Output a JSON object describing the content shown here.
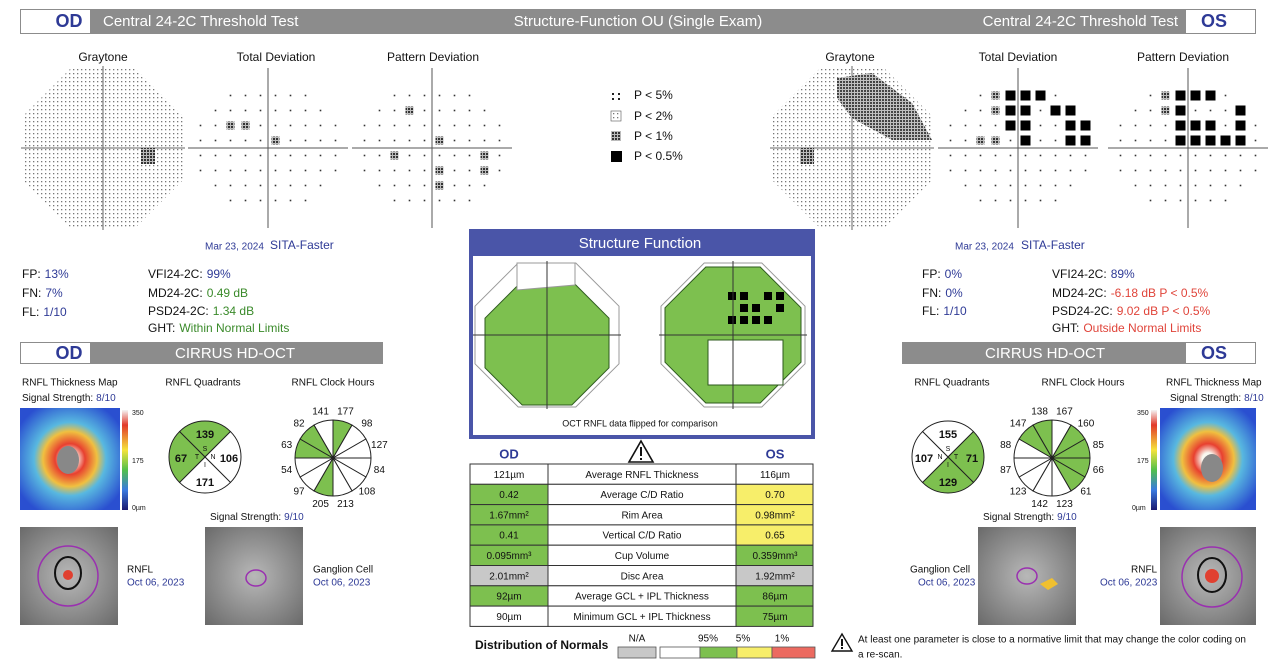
{
  "header": {
    "od": "OD",
    "od_test": "Central 24-2C Threshold Test",
    "title": "Structure-Function OU (Single Exam)",
    "os_test": "Central 24-2C Threshold Test",
    "os": "OS"
  },
  "visual_field": {
    "plot_titles": [
      "Graytone",
      "Total Deviation",
      "Pattern Deviation"
    ],
    "legend": [
      "P < 5%",
      "P < 2%",
      "P < 1%",
      "P < 0.5%"
    ],
    "od": {
      "date": "Mar 23, 2024",
      "strategy": "SITA-Faster",
      "fp_label": "FP:",
      "fp": "13%",
      "fn_label": "FN:",
      "fn": "7%",
      "fl_label": "FL:",
      "fl": "1/10",
      "vfi_label": "VFI24-2C:",
      "vfi": "99%",
      "md_label": "MD24-2C:",
      "md": "0.49 dB",
      "psd_label": "PSD24-2C:",
      "psd": "1.34 dB",
      "ght_label": "GHT:",
      "ght": "Within Normal Limits"
    },
    "os": {
      "date": "Mar 23, 2024",
      "strategy": "SITA-Faster",
      "fp_label": "FP:",
      "fp": "0%",
      "fn_label": "FN:",
      "fn": "0%",
      "fl_label": "FL:",
      "fl": "1/10",
      "vfi_label": "VFI24-2C:",
      "vfi": "89%",
      "md_label": "MD24-2C:",
      "md": "-6.18 dB P < 0.5%",
      "psd_label": "PSD24-2C:",
      "psd": "9.02 dB P < 0.5%",
      "ght_label": "GHT:",
      "ght": "Outside Normal Limits"
    }
  },
  "oct": {
    "title": "CIRRUS HD-OCT",
    "od_label": "OD",
    "os_label": "OS",
    "map_title": "RNFL Thickness Map",
    "quadrants_title": "RNFL Quadrants",
    "clock_title": "RNFL Clock Hours",
    "signal_label": "Signal Strength:",
    "scale": [
      350,
      175,
      "0µm"
    ],
    "od": {
      "map_signal": "8/10",
      "quadrants": [
        139,
        106,
        171,
        67
      ],
      "quadrant_letters": [
        "S",
        "N",
        "I",
        "T"
      ],
      "quadrant_colors": [
        "#7dc04f",
        "#ffffff",
        "#ffffff",
        "#7dc04f"
      ],
      "clock_hours": [
        141,
        177,
        98,
        127,
        84,
        108,
        213,
        205,
        97,
        54,
        63,
        82
      ],
      "clock_colors": [
        "#ffffff",
        "#7dc04f",
        "#ffffff",
        "#ffffff",
        "#ffffff",
        "#ffffff",
        "#ffffff",
        "#7dc04f",
        "#ffffff",
        "#ffffff",
        "#7dc04f",
        "#7dc04f"
      ],
      "gc_signal": "9/10",
      "rnfl_label": "RNFL",
      "rnfl_date": "Oct 06, 2023",
      "gc_label": "Ganglion Cell",
      "gc_date": "Oct 06, 2023"
    },
    "os": {
      "map_signal": "8/10",
      "quadrants": [
        155,
        71,
        129,
        107
      ],
      "quadrant_letters": [
        "S",
        "T",
        "I",
        "N"
      ],
      "quadrant_colors": [
        "#ffffff",
        "#7dc04f",
        "#7dc04f",
        "#ffffff"
      ],
      "clock_hours": [
        138,
        167,
        160,
        85,
        66,
        61,
        123,
        142,
        123,
        87,
        88,
        147
      ],
      "clock_colors": [
        "#7dc04f",
        "#ffffff",
        "#7dc04f",
        "#7dc04f",
        "#7dc04f",
        "#7dc04f",
        "#ffffff",
        "#ffffff",
        "#ffffff",
        "#ffffff",
        "#ffffff",
        "#7dc04f"
      ],
      "gc_signal": "9/10",
      "rnfl_label": "RNFL",
      "rnfl_date": "Oct 06, 2023",
      "gc_label": "Ganglion Cell",
      "gc_date": "Oct 06, 2023"
    }
  },
  "structure_function": {
    "title": "Structure Function",
    "caption": "OCT RNFL data flipped for comparison"
  },
  "table": {
    "headers": [
      "OD",
      "OS"
    ],
    "rows": [
      {
        "od": "121µm",
        "od_color": "#ffffff",
        "parameter": "Average RNFL Thickness",
        "os": "116µm",
        "os_color": "#ffffff"
      },
      {
        "od": "0.42",
        "od_color": "#7dc04f",
        "parameter": "Average C/D Ratio",
        "os": "0.70",
        "os_color": "#f7ee6a"
      },
      {
        "od": "1.67mm²",
        "od_color": "#7dc04f",
        "parameter": "Rim Area",
        "os": "0.98mm²",
        "os_color": "#f7ee6a"
      },
      {
        "od": "0.41",
        "od_color": "#7dc04f",
        "parameter": "Vertical C/D Ratio",
        "os": "0.65",
        "os_color": "#f7ee6a"
      },
      {
        "od": "0.095mm³",
        "od_color": "#7dc04f",
        "parameter": "Cup Volume",
        "os": "0.359mm³",
        "os_color": "#7dc04f"
      },
      {
        "od": "2.01mm²",
        "od_color": "#c8c8c8",
        "parameter": "Disc Area",
        "os": "1.92mm²",
        "os_color": "#c8c8c8"
      },
      {
        "od": "92µm",
        "od_color": "#7dc04f",
        "parameter": "Average GCL + IPL Thickness",
        "os": "86µm",
        "os_color": "#7dc04f"
      },
      {
        "od": "90µm",
        "od_color": "#ffffff",
        "parameter": "Minimum GCL + IPL Thickness",
        "os": "75µm",
        "os_color": "#7dc04f"
      }
    ]
  },
  "distribution": {
    "label": "Distribution of Normals",
    "labels": [
      "N/A",
      "95%",
      "5%",
      "1%"
    ],
    "colors": [
      "#c8c8c8",
      "#ffffff",
      "#7dc04f",
      "#f7ee6a",
      "#ec6a60"
    ]
  },
  "footnote": [
    "At least one parameter is close to a normative limit that may change the color coding on",
    "a re-scan."
  ]
}
